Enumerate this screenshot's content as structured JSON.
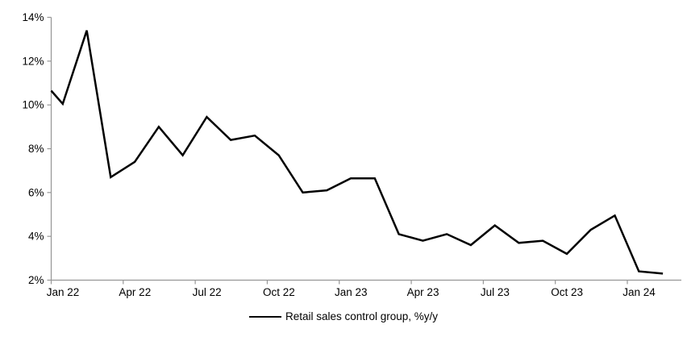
{
  "chart_data": {
    "type": "line",
    "title": "",
    "categories": [
      "Jan 22",
      "Feb 22",
      "Mar 22",
      "Apr 22",
      "May 22",
      "Jun 22",
      "Jul 22",
      "Aug 22",
      "Sep 22",
      "Oct 22",
      "Nov 22",
      "Dec 22",
      "Jan 23",
      "Feb 23",
      "Mar 23",
      "Apr 23",
      "May 23",
      "Jun 23",
      "Jul 23",
      "Aug 23",
      "Sep 23",
      "Oct 23",
      "Nov 23",
      "Dec 23",
      "Jan 24",
      "Feb 24"
    ],
    "series": [
      {
        "name": "Retail sales control group, %y/y",
        "color": "#000000",
        "line_width": 2.5,
        "axis_clip_start_value": 10.65,
        "values": [
          10.05,
          13.4,
          6.7,
          7.4,
          9.0,
          7.7,
          9.45,
          8.4,
          8.6,
          7.7,
          6.0,
          6.1,
          6.65,
          6.65,
          4.1,
          3.8,
          4.1,
          3.6,
          4.5,
          3.7,
          3.8,
          3.2,
          4.3,
          4.95,
          2.4,
          2.3
        ]
      }
    ],
    "x_ticks": {
      "labels": [
        "Jan 22",
        "Apr 22",
        "Jul 22",
        "Oct 22",
        "Jan 23",
        "Apr 23",
        "Jul 23",
        "Oct 23",
        "Jan 24"
      ],
      "month_offsets": [
        0,
        3,
        6,
        9,
        12,
        15,
        18,
        21,
        24
      ]
    },
    "y_ticks": {
      "labels": [
        "14%",
        "12%",
        "10%",
        "8%",
        "6%",
        "4%",
        "2%"
      ],
      "values": [
        14,
        12,
        10,
        8,
        6,
        4,
        2
      ]
    },
    "ylim": [
      2,
      14
    ],
    "grid": false,
    "legend_position": "bottom-center",
    "colors": {
      "axis": "#969696",
      "text": "#000000",
      "background": "#FFFFFF"
    }
  }
}
